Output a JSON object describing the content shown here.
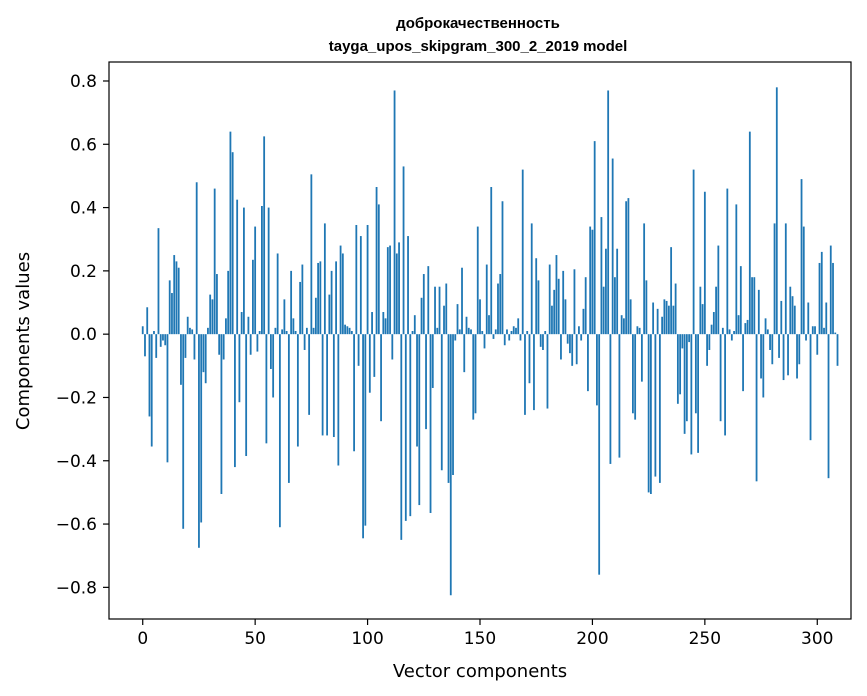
{
  "chart_data": {
    "type": "bar",
    "title": "доброкачественность",
    "subtitle": "tayga_upos_skipgram_300_2_2019 model",
    "xlabel": "Vector components",
    "ylabel": "Components values",
    "xlim": [
      -15,
      315
    ],
    "ylim": [
      -0.9,
      0.86
    ],
    "xticks": [
      0,
      50,
      100,
      150,
      200,
      250,
      300
    ],
    "yticks": [
      -0.8,
      -0.6,
      -0.4,
      -0.2,
      0.0,
      0.2,
      0.4,
      0.6,
      0.8
    ],
    "xtick_labels": [
      "0",
      "50",
      "100",
      "150",
      "200",
      "250",
      "300"
    ],
    "ytick_labels": [
      "−0.8",
      "−0.6",
      "−0.4",
      "−0.2",
      "0.0",
      "0.2",
      "0.4",
      "0.6",
      "0.8"
    ],
    "bar_color": "#1f77b4",
    "grid": false,
    "values": [
      0.025,
      -0.07,
      0.085,
      -0.26,
      -0.355,
      0.01,
      -0.075,
      0.335,
      -0.04,
      -0.02,
      -0.035,
      -0.405,
      0.17,
      0.13,
      0.25,
      0.23,
      0.21,
      -0.16,
      -0.615,
      -0.075,
      0.055,
      0.02,
      0.015,
      -0.08,
      0.48,
      -0.675,
      -0.595,
      -0.12,
      -0.155,
      0.02,
      0.125,
      0.11,
      0.46,
      0.19,
      -0.065,
      -0.505,
      -0.08,
      0.05,
      0.2,
      0.64,
      0.575,
      -0.42,
      0.425,
      -0.215,
      0.07,
      0.4,
      -0.385,
      0.055,
      -0.065,
      0.235,
      0.34,
      -0.055,
      0.01,
      0.405,
      0.625,
      -0.345,
      0.4,
      -0.11,
      -0.2,
      0.02,
      0.255,
      -0.61,
      0.015,
      0.11,
      0.01,
      -0.47,
      0.2,
      0.05,
      0.01,
      -0.355,
      0.165,
      0.22,
      -0.05,
      0.02,
      -0.255,
      0.505,
      0.02,
      0.115,
      0.225,
      0.23,
      -0.32,
      0.35,
      -0.32,
      0.125,
      0.2,
      -0.325,
      0.23,
      -0.415,
      0.28,
      0.255,
      0.03,
      0.025,
      0.02,
      0.01,
      -0.37,
      0.345,
      -0.1,
      0.31,
      -0.645,
      -0.605,
      0.345,
      -0.185,
      0.07,
      -0.135,
      0.465,
      0.41,
      -0.275,
      0.07,
      0.05,
      0.275,
      0.28,
      -0.08,
      0.77,
      0.255,
      0.29,
      -0.65,
      0.53,
      -0.59,
      0.31,
      -0.575,
      0.01,
      0.06,
      -0.355,
      -0.54,
      0.115,
      0.19,
      -0.3,
      0.215,
      -0.565,
      -0.17,
      0.15,
      0.02,
      0.15,
      -0.43,
      0.09,
      0.16,
      -0.47,
      -0.825,
      -0.445,
      -0.02,
      0.095,
      0.015,
      0.21,
      -0.12,
      0.055,
      0.02,
      0.015,
      -0.27,
      -0.25,
      0.34,
      0.11,
      0.01,
      -0.045,
      0.22,
      0.06,
      0.465,
      -0.015,
      0.015,
      0.16,
      0.19,
      0.42,
      -0.035,
      0.015,
      -0.02,
      0.01,
      0.025,
      0.02,
      0.05,
      -0.02,
      0.52,
      -0.255,
      0.01,
      -0.155,
      0.35,
      -0.24,
      0.24,
      0.17,
      -0.04,
      -0.05,
      0.01,
      -0.235,
      0.22,
      0.09,
      0.14,
      0.25,
      0.175,
      -0.08,
      0.2,
      0.11,
      -0.03,
      -0.06,
      -0.1,
      0.205,
      -0.095,
      0.025,
      -0.02,
      0.08,
      0.18,
      -0.18,
      0.34,
      0.33,
      0.61,
      -0.225,
      -0.76,
      0.37,
      0.15,
      0.27,
      0.77,
      -0.41,
      0.555,
      0.18,
      0.27,
      -0.39,
      0.06,
      0.05,
      0.42,
      0.43,
      0.11,
      -0.25,
      -0.27,
      0.025,
      0.02,
      -0.15,
      0.35,
      0.17,
      -0.5,
      -0.505,
      0.1,
      -0.45,
      0.08,
      -0.47,
      0.055,
      0.11,
      0.105,
      0.09,
      0.275,
      0.09,
      0.16,
      -0.22,
      -0.19,
      -0.045,
      -0.315,
      -0.275,
      -0.025,
      -0.38,
      0.52,
      -0.25,
      -0.375,
      0.15,
      0.095,
      0.45,
      -0.1,
      -0.05,
      0.03,
      0.07,
      0.15,
      0.28,
      -0.275,
      0.02,
      -0.32,
      0.46,
      0.015,
      -0.02,
      0.01,
      0.41,
      0.06,
      0.215,
      -0.18,
      0.035,
      0.045,
      0.64,
      0.18,
      0.18,
      -0.465,
      0.14,
      -0.14,
      -0.2,
      0.05,
      0.015,
      -0.05,
      -0.095,
      0.35,
      0.78,
      -0.075,
      0.105,
      -0.145,
      0.35,
      -0.13,
      0.15,
      0.12,
      0.09,
      -0.14,
      -0.095,
      0.49,
      0.34,
      -0.02,
      0.1,
      -0.335,
      0.025,
      0.025,
      -0.065,
      0.225,
      0.26,
      0.02,
      0.1,
      -0.455,
      0.28,
      0.225,
      0.005,
      -0.1
    ]
  }
}
